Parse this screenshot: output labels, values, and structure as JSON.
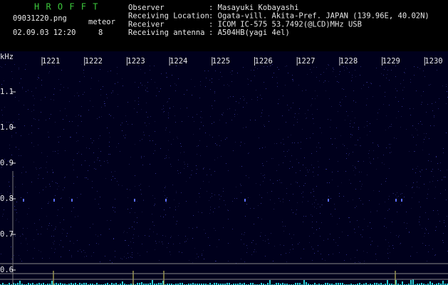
{
  "app": {
    "title": "H R O F F T",
    "file": "09031220.png",
    "datetime": "02.09.03 12:20",
    "count_label": "meteor",
    "count": "8"
  },
  "info": [
    {
      "label": "Observer",
      "value": ": Masayuki Kobayashi"
    },
    {
      "label": "Receiving Location",
      "value": ": Ogata-vill. Akita-Pref. JAPAN (139.96E, 40.02N)"
    },
    {
      "label": "Receiver",
      "value": ": ICOM IC-575 53.7492(@LCD)MHz USB"
    },
    {
      "label": "Receiving antenna",
      "value": ": A504HB(yagi 4el)"
    }
  ],
  "axis": {
    "unit": "kHz",
    "x_labels": [
      "1221",
      "1222",
      "1223",
      "1224",
      "1225",
      "1226",
      "1227",
      "1228",
      "1229",
      "1230"
    ],
    "y_labels": [
      "1.1",
      "1.0",
      "0.9",
      "0.8",
      "0.7",
      "0.6"
    ]
  }
}
